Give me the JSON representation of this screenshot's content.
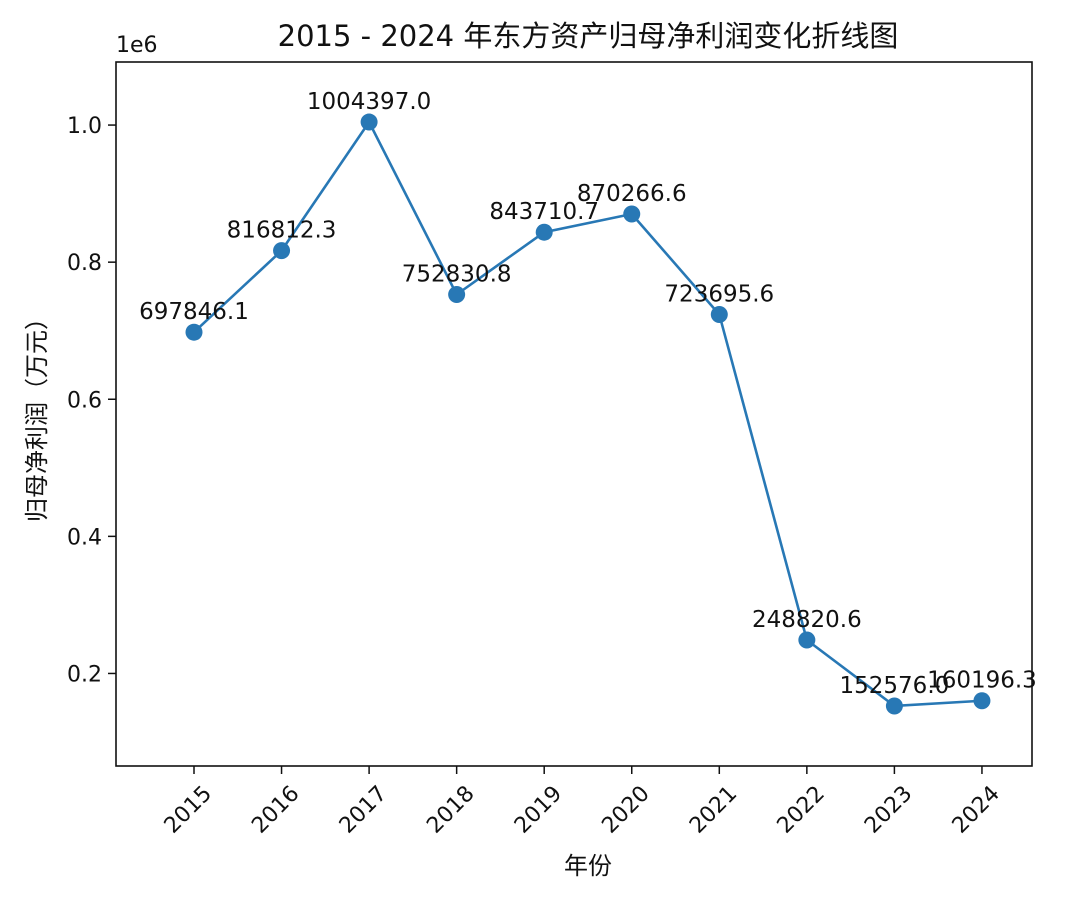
{
  "chart_data": {
    "type": "line",
    "title": "2015 - 2024 年东方资产归母净利润变化折线图",
    "xlabel": "年份",
    "ylabel": "归母净利润（万元）",
    "y_offset_label": "1e6",
    "categories": [
      "2015",
      "2016",
      "2017",
      "2018",
      "2019",
      "2020",
      "2021",
      "2022",
      "2023",
      "2024"
    ],
    "values": [
      697846.1,
      816812.3,
      1004397.0,
      752830.8,
      843710.7,
      870266.6,
      723695.6,
      248820.6,
      152576.0,
      160196.3
    ],
    "data_labels": [
      "697846.1",
      "816812.3",
      "1004397.0",
      "752830.8",
      "843710.7",
      "870266.6",
      "723695.6",
      "248820.6",
      "152576.0",
      "160196.3"
    ],
    "ylim": [
      65000,
      1092000
    ],
    "y_ticks": [
      200000,
      400000,
      600000,
      800000,
      1000000
    ],
    "y_tick_labels": [
      "0.2",
      "0.4",
      "0.6",
      "0.8",
      "1.0"
    ],
    "grid": false,
    "legend": "none",
    "line_color": "#2878b5",
    "marker_color": "#2878b5"
  }
}
